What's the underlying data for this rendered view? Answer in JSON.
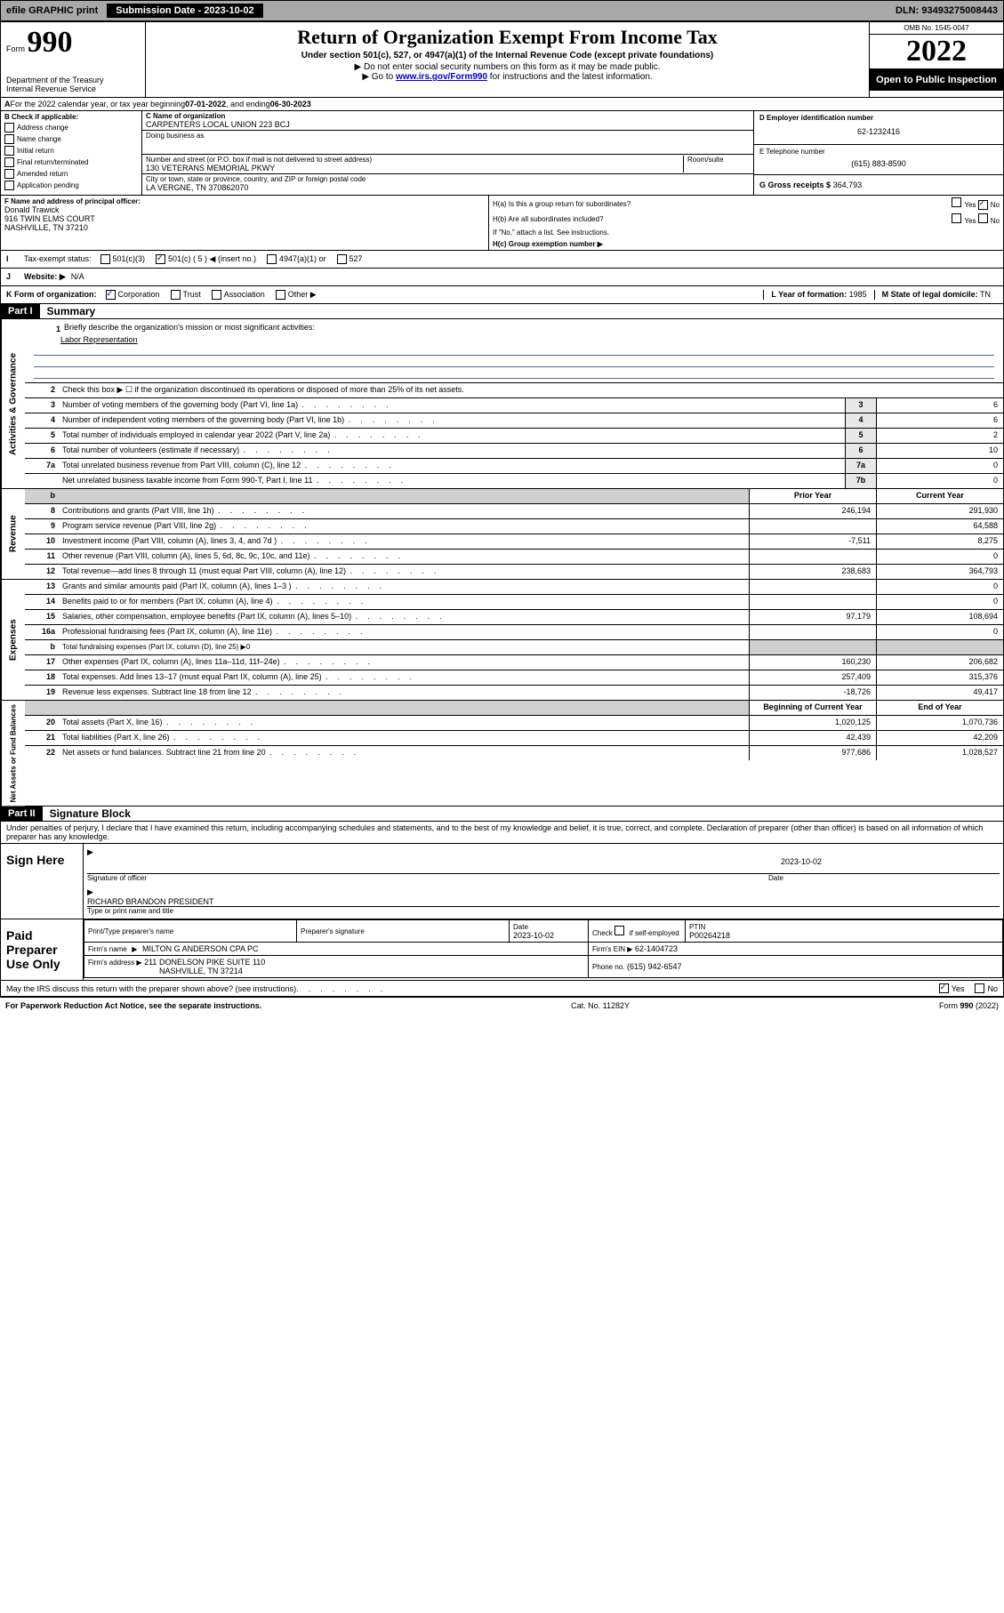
{
  "top_bar": {
    "efile": "efile GRAPHIC print",
    "submission_label": "Submission Date - 2023-10-02",
    "dln": "DLN: 93493275008443"
  },
  "header": {
    "form_label": "Form",
    "form_number": "990",
    "dept1": "Department of the Treasury",
    "dept2": "Internal Revenue Service",
    "title": "Return of Organization Exempt From Income Tax",
    "subtitle": "Under section 501(c), 527, or 4947(a)(1) of the Internal Revenue Code (except private foundations)",
    "note1": "▶ Do not enter social security numbers on this form as it may be made public.",
    "note2_a": "▶ Go to ",
    "note2_link": "www.irs.gov/Form990",
    "note2_b": " for instructions and the latest information.",
    "omb": "OMB No. 1545-0047",
    "year": "2022",
    "open_public": "Open to Public Inspection"
  },
  "line_a": {
    "text_a": "For the 2022 calendar year, or tax year beginning ",
    "begin": "07-01-2022",
    "mid": " , and ending ",
    "end": "06-30-2023"
  },
  "check_b": {
    "label": "B Check if applicable:",
    "items": [
      "Address change",
      "Name change",
      "Initial return",
      "Final return/terminated",
      "Amended return",
      "Application pending"
    ]
  },
  "org": {
    "name_label": "C Name of organization",
    "name": "CARPENTERS LOCAL UNION 223 BCJ",
    "dba_label": "Doing business as",
    "dba": "",
    "street_label": "Number and street (or P.O. box if mail is not delivered to street address)",
    "room_label": "Room/suite",
    "street": "130 VETERANS MEMORIAL PKWY",
    "city_label": "City or town, state or province, country, and ZIP or foreign postal code",
    "city": "LA VERGNE, TN  370862070"
  },
  "right_box": {
    "d_label": "D Employer identification number",
    "ein": "62-1232416",
    "e_label": "E Telephone number",
    "phone": "(615) 883-8590",
    "g_label": "G Gross receipts $",
    "gross": "364,793"
  },
  "f_box": {
    "label": "F Name and address of principal officer:",
    "name": "Donald Trawick",
    "addr1": "916 TWIN ELMS COURT",
    "addr2": "NASHVILLE, TN  37210"
  },
  "h_box": {
    "ha": "H(a)  Is this a group return for subordinates?",
    "hb": "H(b)  Are all subordinates included?",
    "hb_note": "If \"No,\" attach a list. See instructions.",
    "hc": "H(c)  Group exemption number ▶",
    "yes": "Yes",
    "no": "No"
  },
  "i_row": {
    "label": "Tax-exempt status:",
    "opt1": "501(c)(3)",
    "opt2": "501(c) ( 5 ) ◀ (insert no.)",
    "opt3": "4947(a)(1) or",
    "opt4": "527"
  },
  "j_row": {
    "label": "Website: ▶",
    "value": "N/A"
  },
  "k_row": {
    "label": "K Form of organization:",
    "opts": [
      "Corporation",
      "Trust",
      "Association",
      "Other ▶"
    ],
    "l_label": "L Year of formation:",
    "l_val": "1985",
    "m_label": "M State of legal domicile:",
    "m_val": "TN"
  },
  "part1": {
    "header": "Part I",
    "title": "Summary"
  },
  "governance": {
    "label": "Activities & Governance",
    "line1_label": "Briefly describe the organization's mission or most significant activities:",
    "line1_val": "Labor Representation",
    "line2": "Check this box ▶ ☐  if the organization discontinued its operations or disposed of more than 25% of its net assets.",
    "rows": [
      {
        "n": "3",
        "t": "Number of voting members of the governing body (Part VI, line 1a)",
        "k": "3",
        "v": "6"
      },
      {
        "n": "4",
        "t": "Number of independent voting members of the governing body (Part VI, line 1b)",
        "k": "4",
        "v": "6"
      },
      {
        "n": "5",
        "t": "Total number of individuals employed in calendar year 2022 (Part V, line 2a)",
        "k": "5",
        "v": "2"
      },
      {
        "n": "6",
        "t": "Total number of volunteers (estimate if necessary)",
        "k": "6",
        "v": "10"
      },
      {
        "n": "7a",
        "t": "Total unrelated business revenue from Part VIII, column (C), line 12",
        "k": "7a",
        "v": "0"
      },
      {
        "n": "",
        "t": "Net unrelated business taxable income from Form 990-T, Part I, line 11",
        "k": "7b",
        "v": "0"
      }
    ]
  },
  "two_col_header": {
    "prior": "Prior Year",
    "current": "Current Year",
    "begin": "Beginning of Current Year",
    "end": "End of Year"
  },
  "revenue": {
    "label": "Revenue",
    "rows": [
      {
        "n": "8",
        "t": "Contributions and grants (Part VIII, line 1h)",
        "p": "246,194",
        "c": "291,930"
      },
      {
        "n": "9",
        "t": "Program service revenue (Part VIII, line 2g)",
        "p": "",
        "c": "64,588"
      },
      {
        "n": "10",
        "t": "Investment income (Part VIII, column (A), lines 3, 4, and 7d )",
        "p": "-7,511",
        "c": "8,275"
      },
      {
        "n": "11",
        "t": "Other revenue (Part VIII, column (A), lines 5, 6d, 8c, 9c, 10c, and 11e)",
        "p": "",
        "c": "0"
      },
      {
        "n": "12",
        "t": "Total revenue—add lines 8 through 11 (must equal Part VIII, column (A), line 12)",
        "p": "238,683",
        "c": "364,793"
      }
    ]
  },
  "expenses": {
    "label": "Expenses",
    "rows": [
      {
        "n": "13",
        "t": "Grants and similar amounts paid (Part IX, column (A), lines 1–3 )",
        "p": "",
        "c": "0"
      },
      {
        "n": "14",
        "t": "Benefits paid to or for members (Part IX, column (A), line 4)",
        "p": "",
        "c": "0"
      },
      {
        "n": "15",
        "t": "Salaries, other compensation, employee benefits (Part IX, column (A), lines 5–10)",
        "p": "97,179",
        "c": "108,694"
      },
      {
        "n": "16a",
        "t": "Professional fundraising fees (Part IX, column (A), line 11e)",
        "p": "",
        "c": "0"
      },
      {
        "n": "b",
        "t": "Total fundraising expenses (Part IX, column (D), line 25) ▶0",
        "p": "grey",
        "c": "grey"
      },
      {
        "n": "17",
        "t": "Other expenses (Part IX, column (A), lines 11a–11d, 11f–24e)",
        "p": "160,230",
        "c": "206,682"
      },
      {
        "n": "18",
        "t": "Total expenses. Add lines 13–17 (must equal Part IX, column (A), line 25)",
        "p": "257,409",
        "c": "315,376"
      },
      {
        "n": "19",
        "t": "Revenue less expenses. Subtract line 18 from line 12",
        "p": "-18,726",
        "c": "49,417"
      }
    ]
  },
  "netassets": {
    "label": "Net Assets or Fund Balances",
    "rows": [
      {
        "n": "20",
        "t": "Total assets (Part X, line 16)",
        "p": "1,020,125",
        "c": "1,070,736"
      },
      {
        "n": "21",
        "t": "Total liabilities (Part X, line 26)",
        "p": "42,439",
        "c": "42,209"
      },
      {
        "n": "22",
        "t": "Net assets or fund balances. Subtract line 21 from line 20",
        "p": "977,686",
        "c": "1,028,527"
      }
    ]
  },
  "part2": {
    "header": "Part II",
    "title": "Signature Block",
    "declaration": "Under penalties of perjury, I declare that I have examined this return, including accompanying schedules and statements, and to the best of my knowledge and belief, it is true, correct, and complete. Declaration of preparer (other than officer) is based on all information of which preparer has any knowledge."
  },
  "sign": {
    "label": "Sign Here",
    "sig_label": "Signature of officer",
    "date_label": "Date",
    "date": "2023-10-02",
    "name": "RICHARD BRANDON PRESIDENT",
    "name_label": "Type or print name and title"
  },
  "paid": {
    "label": "Paid Preparer Use Only",
    "h1": "Print/Type preparer's name",
    "h2": "Preparer's signature",
    "h3": "Date",
    "h3v": "2023-10-02",
    "h4a": "Check",
    "h4b": "if self-employed",
    "h5": "PTIN",
    "h5v": "P00264218",
    "firm_name_label": "Firm's name",
    "firm_name": "MILTON G ANDERSON CPA PC",
    "firm_ein_label": "Firm's EIN ▶",
    "firm_ein": "62-1404723",
    "firm_addr_label": "Firm's address ▶",
    "firm_addr1": "211 DONELSON PIKE SUITE 110",
    "firm_addr2": "NASHVILLE, TN  37214",
    "phone_label": "Phone no.",
    "phone": "(615) 942-6547"
  },
  "bottom": {
    "discuss": "May the IRS discuss this return with the preparer shown above? (see instructions)",
    "yes": "Yes",
    "no": "No",
    "paperwork": "For Paperwork Reduction Act Notice, see the separate instructions.",
    "cat": "Cat. No. 11282Y",
    "form": "Form 990 (2022)"
  }
}
